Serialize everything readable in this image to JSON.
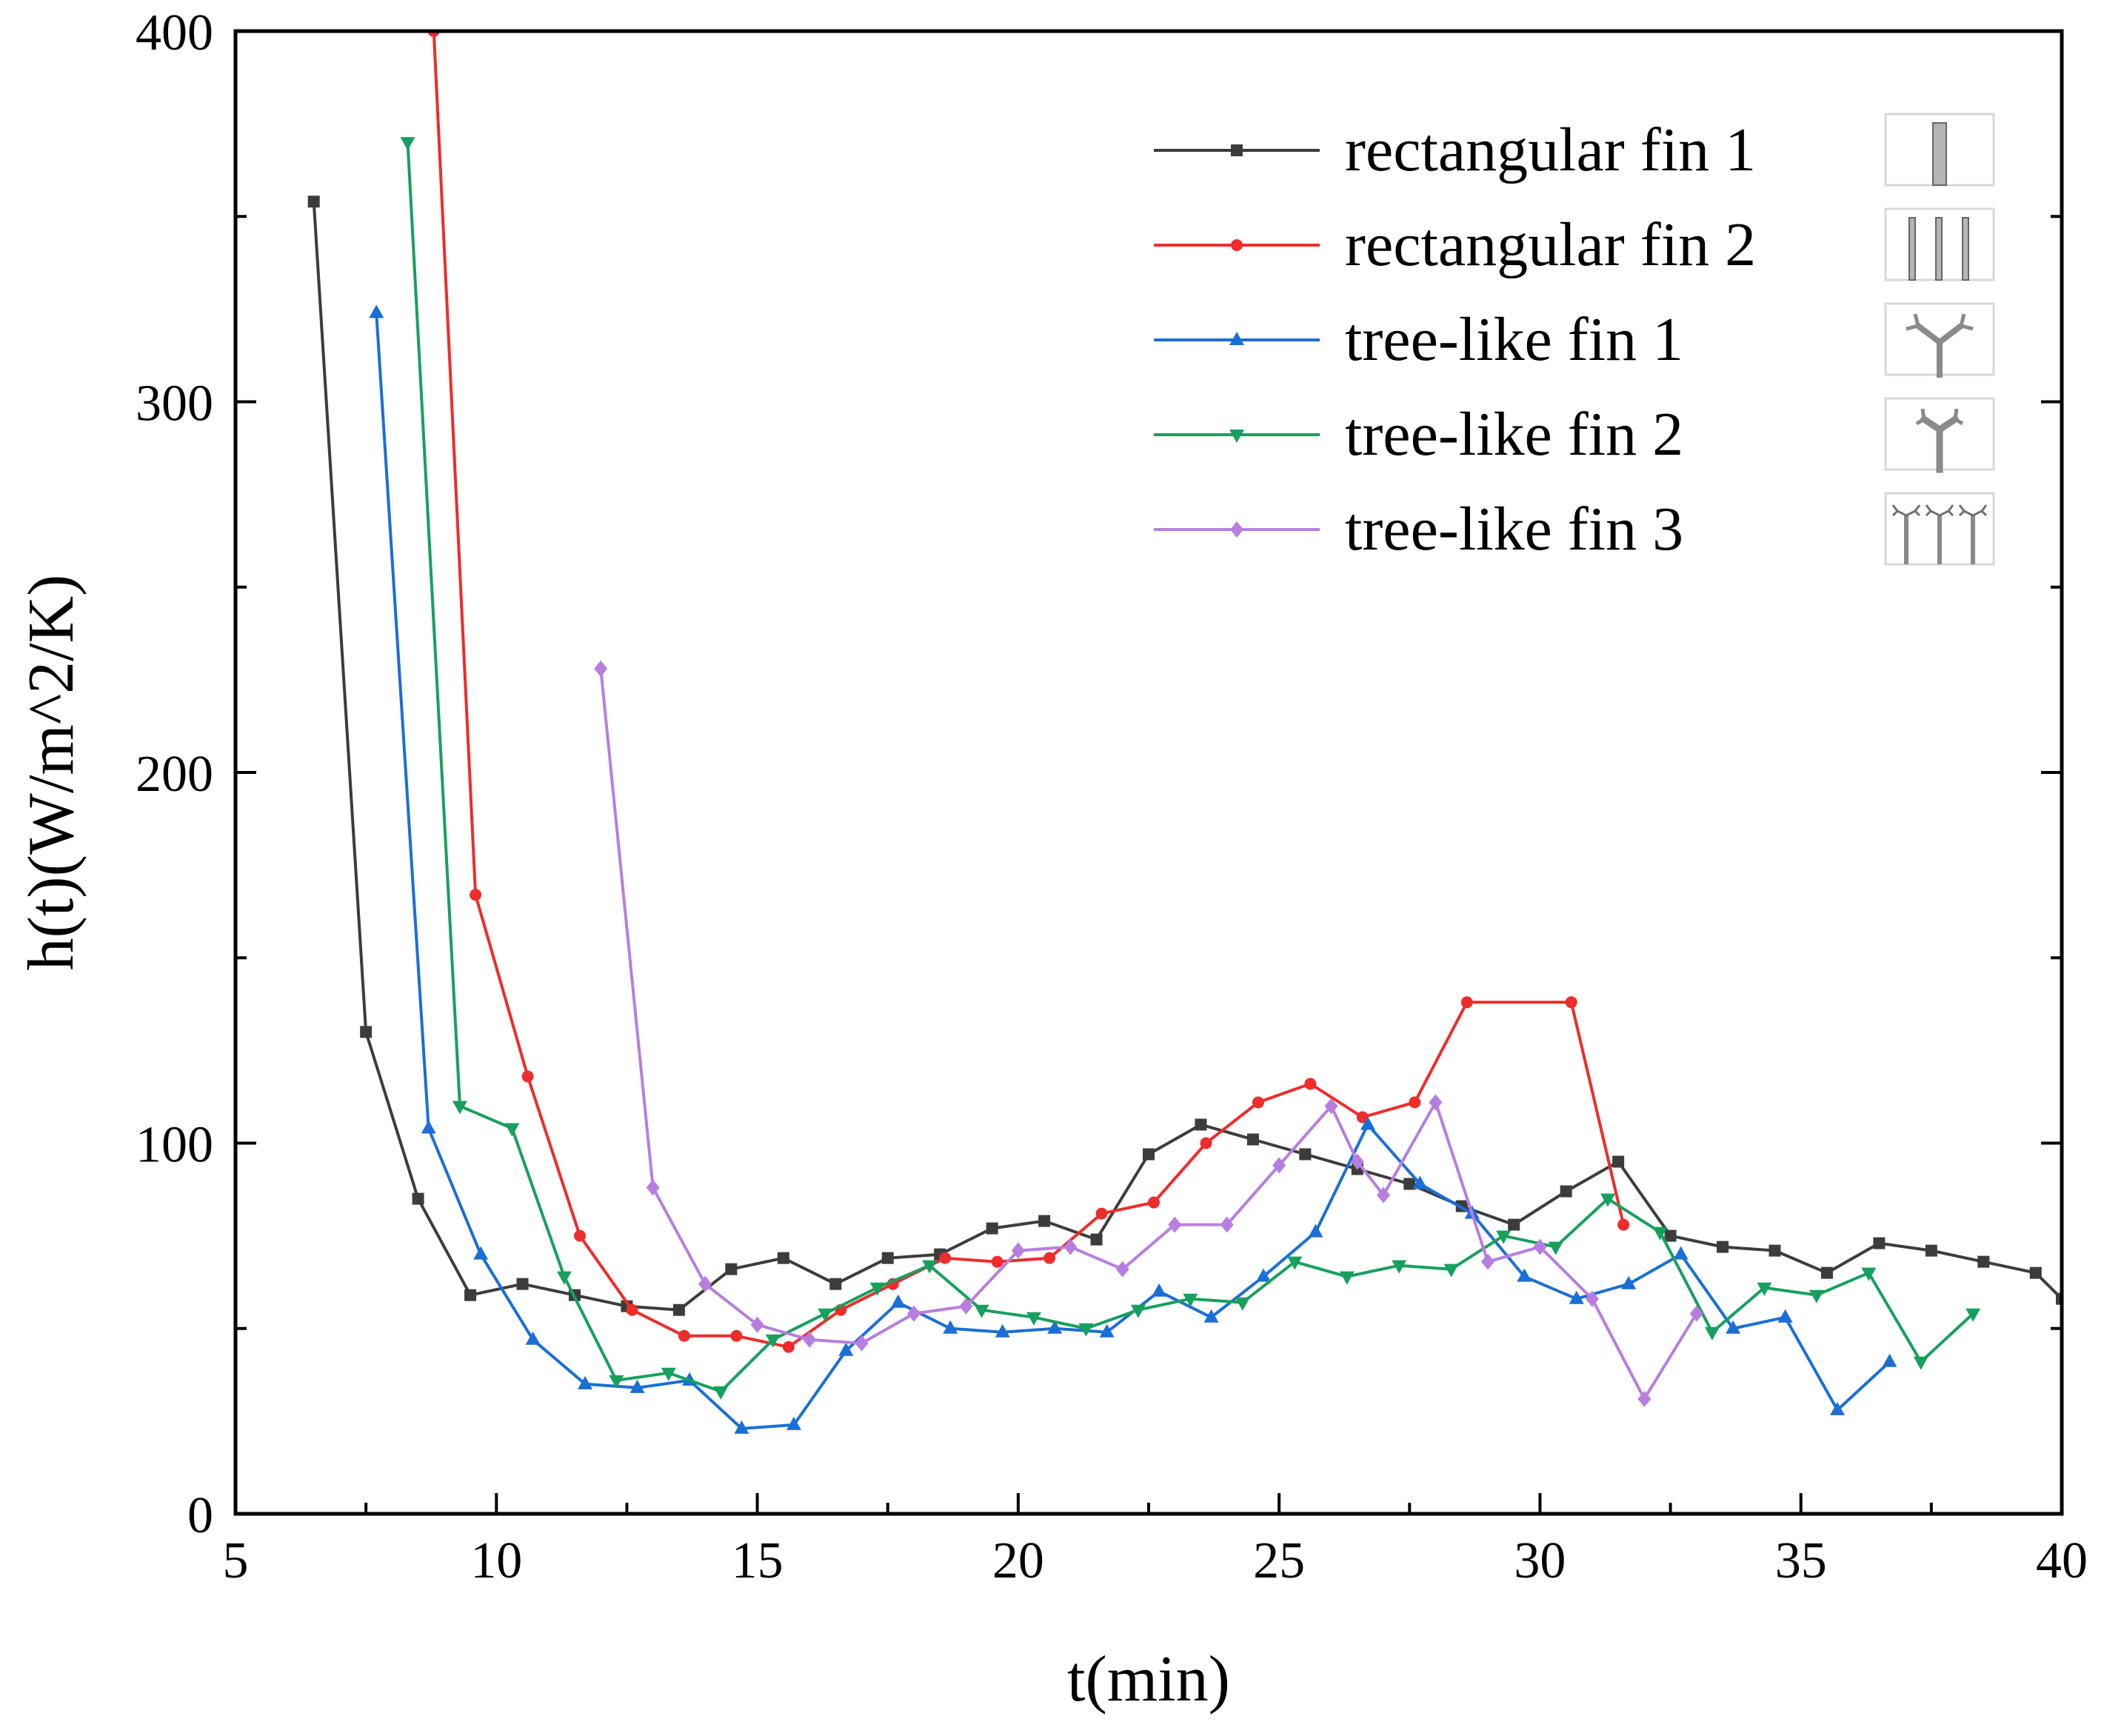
{
  "chart_data": {
    "type": "line",
    "title": "",
    "xlabel": "t(min)",
    "ylabel": "h(t)(W/m^2/K)",
    "xlim": [
      5,
      40
    ],
    "ylim": [
      0,
      400
    ],
    "xticks": [
      5,
      10,
      15,
      20,
      25,
      30,
      35,
      40
    ],
    "yticks": [
      0,
      100,
      200,
      300,
      400
    ],
    "legend_position": "top-right",
    "series": [
      {
        "name": "rectangular fin 1",
        "color": "#3c3c3c",
        "marker": "square",
        "x": [
          6.5,
          7.5,
          8.5,
          9.5,
          10.5,
          11.5,
          12.5,
          13.5,
          14.5,
          15.5,
          16.5,
          17.5,
          18.5,
          19.5,
          20.5,
          21.5,
          22.5,
          23.5,
          24.5,
          25.5,
          26.5,
          27.5,
          28.5,
          29.5,
          30.5,
          31.5,
          32.5,
          33.5,
          34.5,
          35.5,
          36.5,
          37.5,
          38.5,
          39.5,
          40
        ],
        "y": [
          354,
          130,
          85,
          59,
          62,
          59,
          56,
          55,
          66,
          69,
          62,
          69,
          70,
          77,
          79,
          74,
          97,
          105,
          101,
          97,
          93,
          89,
          83,
          78,
          87,
          95,
          75,
          72,
          71,
          65,
          73,
          71,
          68,
          65,
          58
        ]
      },
      {
        "name": "rectangular fin 2",
        "color": "#ee2c2c",
        "marker": "circle",
        "x": [
          8.8,
          9.6,
          10.6,
          11.6,
          12.6,
          13.6,
          14.6,
          15.6,
          16.6,
          17.6,
          18.6,
          19.6,
          20.6,
          21.6,
          22.6,
          23.6,
          24.6,
          25.6,
          26.6,
          27.6,
          28.6,
          30.6,
          31.6
        ],
        "y": [
          400,
          167,
          118,
          75,
          55,
          48,
          48,
          45,
          55,
          62,
          69,
          68,
          69,
          81,
          84,
          100,
          111,
          116,
          107,
          111,
          138,
          138,
          78
        ]
      },
      {
        "name": "tree-like fin 1",
        "color": "#1a6fd6",
        "marker": "triangle-up",
        "x": [
          7.7,
          8.7,
          9.7,
          10.7,
          11.7,
          12.7,
          13.7,
          14.7,
          15.7,
          16.7,
          17.7,
          18.7,
          19.7,
          20.7,
          21.7,
          22.7,
          23.7,
          24.7,
          25.7,
          26.7,
          27.7,
          28.7,
          29.7,
          30.7,
          31.7,
          32.7,
          33.7,
          34.7,
          35.7,
          36.7
        ],
        "y": [
          324,
          104,
          70,
          47,
          35,
          34,
          36,
          23,
          24,
          44,
          57,
          50,
          49,
          50,
          49,
          60,
          53,
          64,
          76,
          105,
          89,
          81,
          64,
          58,
          62,
          70,
          50,
          53,
          28,
          41
        ]
      },
      {
        "name": "tree-like fin 2",
        "color": "#17a05d",
        "marker": "triangle-down",
        "x": [
          8.3,
          9.3,
          10.3,
          11.3,
          12.3,
          13.3,
          14.3,
          15.3,
          16.3,
          17.3,
          18.3,
          19.3,
          20.3,
          21.3,
          22.3,
          23.3,
          24.3,
          25.3,
          26.3,
          27.3,
          28.3,
          29.3,
          30.3,
          31.3,
          32.3,
          33.3,
          34.3,
          35.3,
          36.3,
          37.3,
          38.3
        ],
        "y": [
          370,
          110,
          104,
          64,
          36,
          38,
          33,
          47,
          54,
          61,
          67,
          55,
          53,
          50,
          55,
          58,
          57,
          68,
          64,
          67,
          66,
          75,
          72,
          85,
          76,
          49,
          61,
          59,
          65,
          41,
          54
        ]
      },
      {
        "name": "tree-like fin 3",
        "color": "#b77ee0",
        "marker": "diamond",
        "x": [
          12,
          13,
          14,
          15,
          16,
          17,
          18,
          19,
          20,
          21,
          22,
          23,
          24,
          25,
          26,
          26.5,
          27,
          28,
          29,
          30,
          31,
          32,
          33
        ],
        "y": [
          228,
          88,
          62,
          51,
          47,
          46,
          54,
          56,
          71,
          72,
          66,
          78,
          78,
          94,
          110,
          95,
          86,
          111,
          68,
          72,
          58,
          31,
          54
        ]
      }
    ]
  }
}
